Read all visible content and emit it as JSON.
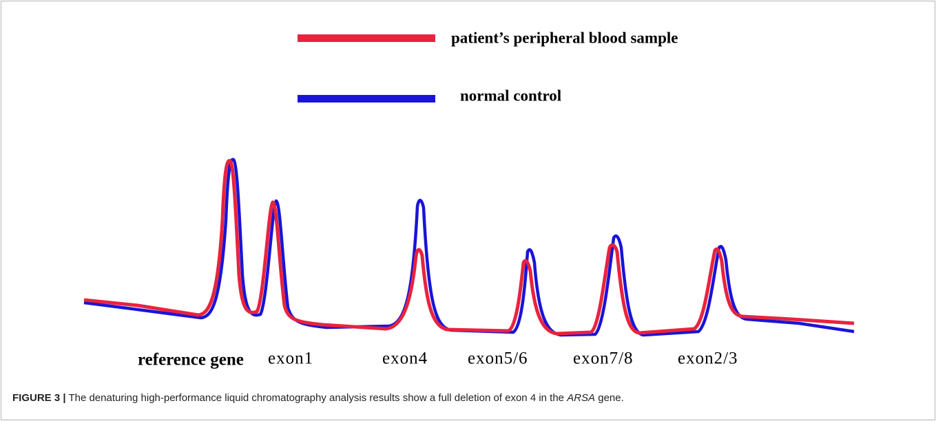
{
  "legend": [
    {
      "label": "patient’s peripheral blood sample",
      "color": "#e8233f"
    },
    {
      "label": "normal control",
      "color": "#1a14d6"
    }
  ],
  "peak_labels": [
    "reference gene",
    "exon1",
    "exon4",
    "exon5/6",
    "exon7/8",
    "exon2/3"
  ],
  "caption": {
    "label": "FIGURE 3 |",
    "text_before": " The denaturing high-performance liquid chromatography analysis results show a full deletion of exon 4 in the ",
    "gene": "ARSA",
    "text_after": " gene."
  }
}
